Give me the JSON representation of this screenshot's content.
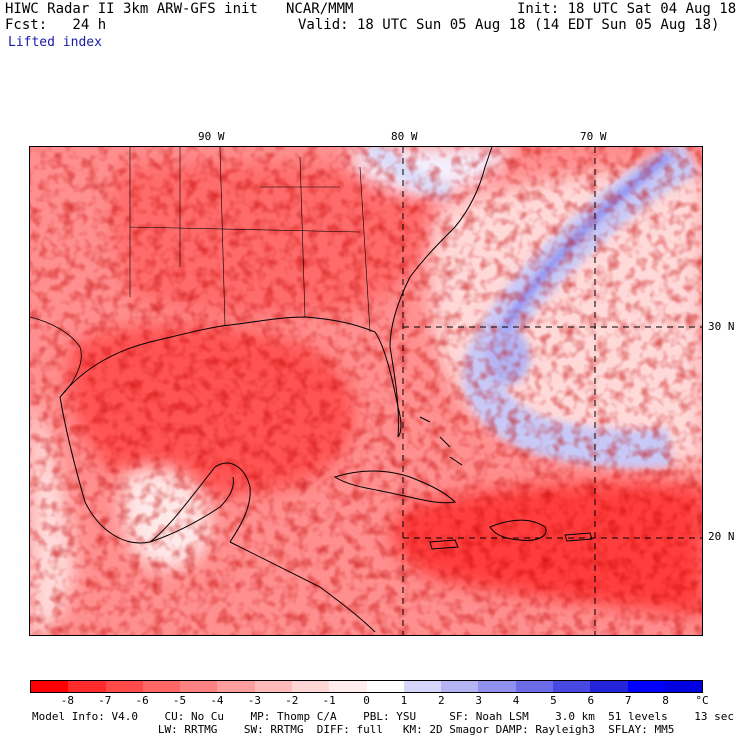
{
  "header": {
    "title": "HIWC Radar II 3km ARW-GFS init",
    "org": "NCAR/MMM",
    "init": "Init: 18 UTC Sat 04 Aug 18",
    "fcst": "Fcst:   24 h",
    "valid": "Valid: 18 UTC Sun 05 Aug 18 (14 EDT Sun 05 Aug 18)",
    "field": "Lifted index"
  },
  "map": {
    "lon_labels": [
      "90 W",
      "80 W",
      "70 W"
    ],
    "lat_labels": [
      "30 N",
      "20 N"
    ],
    "colors": {
      "strong_neg": "#ff3030",
      "neg": "#ff7a7a",
      "weak_neg": "#ffc4c4",
      "near_zero": "#fff0f0",
      "pos": "#b8b8f5",
      "strong_pos": "#6a6af0",
      "contour": "#8b0000",
      "coast": "#000000"
    }
  },
  "colorbar": {
    "labels": [
      "-8",
      "-7",
      "-6",
      "-5",
      "-4",
      "-3",
      "-2",
      "-1",
      "0",
      "1",
      "2",
      "3",
      "4",
      "5",
      "6",
      "7",
      "8"
    ],
    "unit": "°C",
    "colors": [
      "#ff0000",
      "#ff2a2a",
      "#ff4a4a",
      "#ff6666",
      "#ff8282",
      "#ff9e9e",
      "#ffbaba",
      "#ffd6d6",
      "#ffeded",
      "#ffffff",
      "#d6d6fa",
      "#b4b4f5",
      "#9090ee",
      "#6c6ce8",
      "#4848e2",
      "#2424db",
      "#0000ff",
      "#0000e0"
    ]
  },
  "footer": {
    "line1": "Model Info: V4.0    CU: No Cu    MP: Thomp C/A    PBL: YSU     SF: Noah LSM    3.0 km  51 levels    13 sec",
    "line2": "                   LW: RRTMG    SW: RRTMG  DIFF: full   KM: 2D Smagor DAMP: Rayleigh3  SFLAY: MM5"
  }
}
